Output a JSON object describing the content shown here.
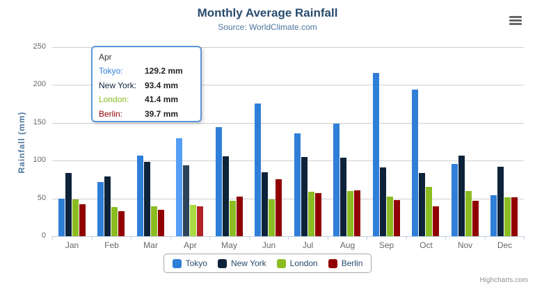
{
  "chart_data": {
    "type": "bar",
    "title": "Monthly Average Rainfall",
    "subtitle": "Source: WorldClimate.com",
    "xlabel": "",
    "ylabel": "Rainfall (mm)",
    "ylim": [
      0,
      250
    ],
    "y_ticks": [
      0,
      50,
      100,
      150,
      200,
      250
    ],
    "grid": true,
    "legend_position": "bottom",
    "categories": [
      "Jan",
      "Feb",
      "Mar",
      "Apr",
      "May",
      "Jun",
      "Jul",
      "Aug",
      "Sep",
      "Oct",
      "Nov",
      "Dec"
    ],
    "series": [
      {
        "name": "Tokyo",
        "color": "#2f7ed8",
        "hover_color": "#559ef5",
        "values": [
          49.9,
          71.5,
          106.4,
          129.2,
          144.0,
          176.0,
          135.6,
          148.5,
          216.4,
          194.1,
          95.6,
          54.4
        ]
      },
      {
        "name": "New York",
        "color": "#0d233a",
        "hover_color": "#2d435a",
        "values": [
          83.6,
          78.8,
          98.5,
          93.4,
          106.0,
          84.5,
          105.0,
          104.3,
          91.2,
          83.5,
          106.6,
          92.3
        ]
      },
      {
        "name": "London",
        "color": "#8bbc21",
        "hover_color": "#a9da3f",
        "values": [
          48.9,
          38.8,
          39.3,
          41.4,
          47.0,
          48.3,
          59.0,
          59.6,
          52.4,
          65.2,
          59.3,
          51.2
        ]
      },
      {
        "name": "Berlin",
        "color": "#910000",
        "hover_color": "#b12525",
        "values": [
          42.4,
          33.2,
          34.5,
          39.7,
          52.6,
          75.5,
          57.4,
          60.4,
          47.6,
          39.1,
          46.8,
          51.1
        ]
      }
    ],
    "highlighted_category": "Apr"
  },
  "tooltip": {
    "category": "Apr",
    "border_color": "#2f7ed8",
    "rows": [
      {
        "label": "Tokyo:",
        "value": "129.2 mm"
      },
      {
        "label": "New York:",
        "value": "93.4 mm"
      },
      {
        "label": "London:",
        "value": "41.4 mm"
      },
      {
        "label": "Berlin:",
        "value": "39.7 mm"
      }
    ]
  },
  "credits_label": "Highcharts.com",
  "icons": {
    "export_menu": "hamburger-icon"
  }
}
